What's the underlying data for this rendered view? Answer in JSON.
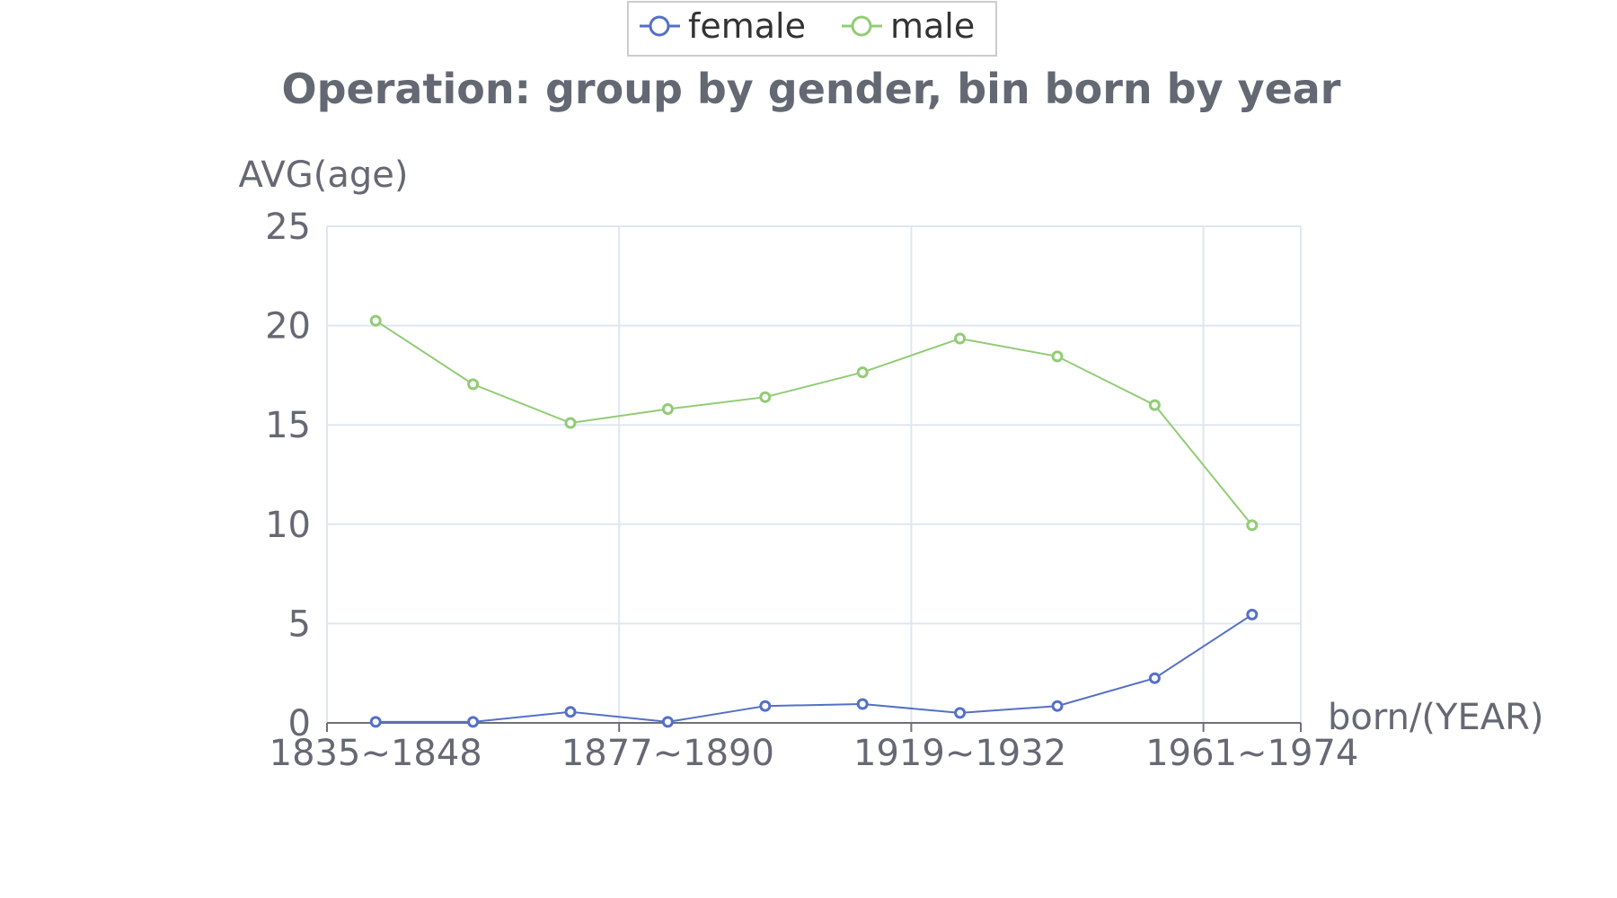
{
  "chart_data": {
    "type": "line",
    "title": "Operation: group by gender, bin born by year",
    "xlabel": "born/(YEAR)",
    "ylabel": "AVG(age)",
    "ylim": [
      0,
      25
    ],
    "yticks": [
      "0",
      "5",
      "10",
      "15",
      "20",
      "25"
    ],
    "x_tick_labels": [
      "1835~1848",
      "1877~1890",
      "1919~1932",
      "1961~1974"
    ],
    "num_points": 10,
    "grid": true,
    "legend_position": "top-center",
    "series": [
      {
        "name": "female",
        "color": "#5470c6",
        "values": [
          0.05,
          0.05,
          0.55,
          0.05,
          0.85,
          0.95,
          0.5,
          0.85,
          2.25,
          5.45
        ]
      },
      {
        "name": "male",
        "color": "#91cc75",
        "values": [
          20.25,
          17.05,
          15.1,
          15.8,
          16.4,
          17.65,
          19.35,
          18.45,
          16.0,
          9.95
        ]
      }
    ]
  }
}
